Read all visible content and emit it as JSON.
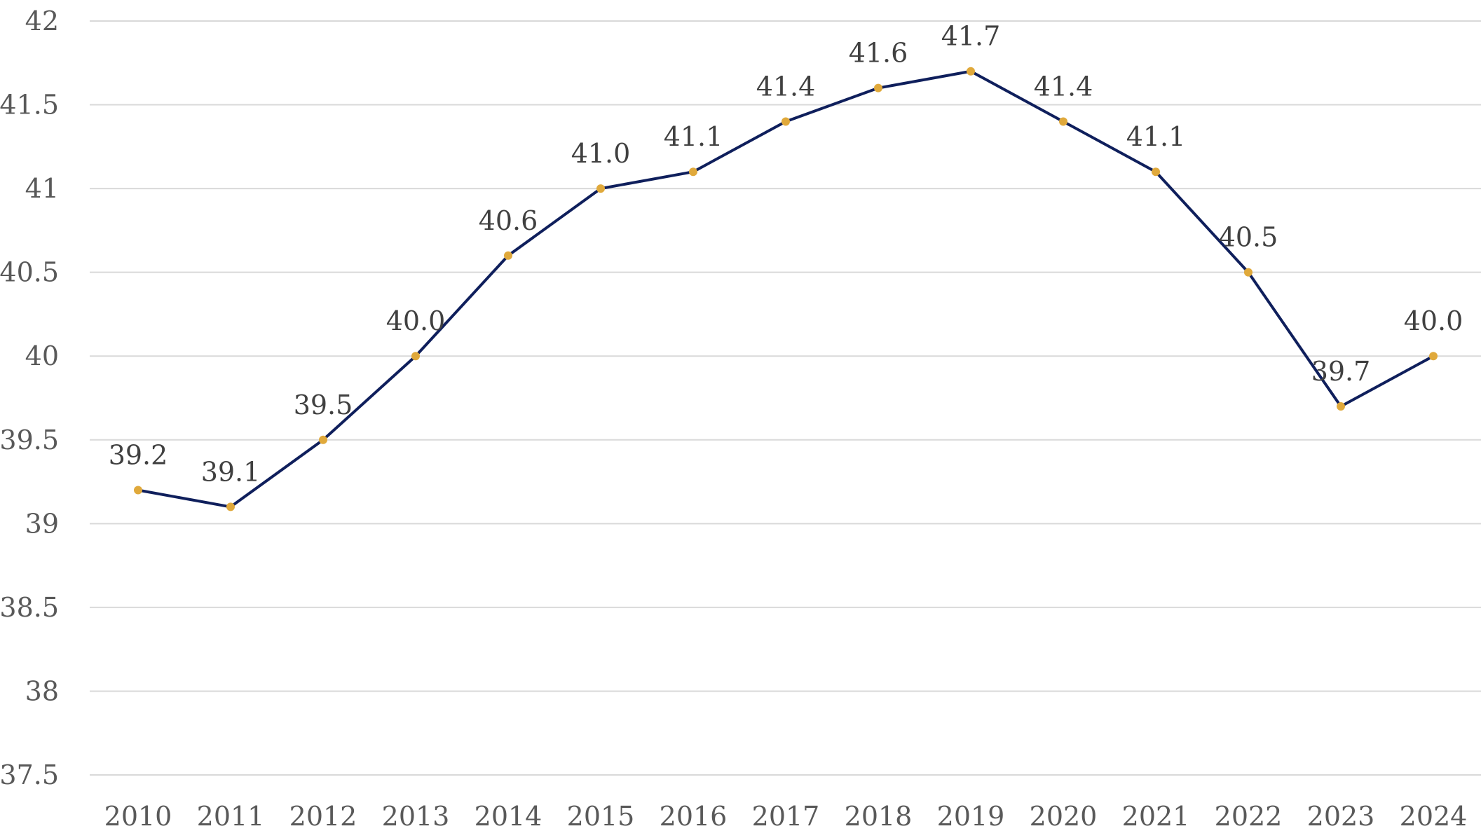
{
  "chart_data": {
    "type": "line",
    "title": "",
    "xlabel": "",
    "ylabel": "",
    "categories": [
      "2010",
      "2011",
      "2012",
      "2013",
      "2014",
      "2015",
      "2016",
      "2017",
      "2018",
      "2019",
      "2020",
      "2021",
      "2022",
      "2023",
      "2024"
    ],
    "series": [
      {
        "values": [
          39.2,
          39.1,
          39.5,
          40.0,
          40.6,
          41.0,
          41.1,
          41.4,
          41.6,
          41.7,
          41.4,
          41.1,
          40.5,
          39.7,
          40.0
        ],
        "labels": [
          "39.2",
          "39.1",
          "39.5",
          "40.0",
          "40.6",
          "41.0",
          "41.1",
          "41.4",
          "41.6",
          "41.7",
          "41.4",
          "41.1",
          "40.5",
          "39.7",
          "40.0"
        ],
        "line_color": "#0f1f5c",
        "marker_color": "#e0a93b"
      }
    ],
    "ylim": [
      37.5,
      42
    ],
    "yticks": [
      37.5,
      38,
      38.5,
      39,
      39.5,
      40,
      40.5,
      41,
      41.5,
      42
    ],
    "ytick_labels": [
      "37.5",
      "38",
      "38.5",
      "39",
      "39.5",
      "40",
      "40.5",
      "41",
      "41.5",
      "42"
    ],
    "grid": true,
    "legend": "none"
  }
}
